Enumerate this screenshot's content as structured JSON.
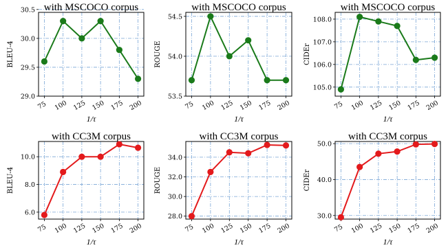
{
  "chart_data": [
    {
      "type": "line",
      "title": "with MSCOCO corpus",
      "xlabel": "1/τ",
      "ylabel": "BLEU-4",
      "x": [
        75,
        100,
        125,
        150,
        175,
        200
      ],
      "xticks": [
        "75",
        "100",
        "125",
        "150",
        "175",
        "200"
      ],
      "ylim": [
        29.0,
        30.45
      ],
      "yticks": [
        "29.0",
        "29.5",
        "30.0",
        "30.5"
      ],
      "ytick_values": [
        29.0,
        29.5,
        30.0,
        30.5
      ],
      "series": [
        {
          "values": [
            29.6,
            30.3,
            30.0,
            30.3,
            29.8,
            29.3
          ],
          "color": "#1a7a1a"
        }
      ],
      "grid": true
    },
    {
      "type": "line",
      "title": "with MSCOCO corpus",
      "xlabel": "1/τ",
      "ylabel": "ROUGE",
      "x": [
        75,
        100,
        125,
        150,
        175,
        200
      ],
      "xticks": [
        "75",
        "100",
        "125",
        "150",
        "175",
        "200"
      ],
      "ylim": [
        53.5,
        54.55
      ],
      "yticks": [
        "53.5",
        "54.0",
        "54.5"
      ],
      "ytick_values": [
        53.5,
        54.0,
        54.5
      ],
      "series": [
        {
          "values": [
            53.7,
            54.5,
            54.0,
            54.2,
            53.7,
            53.7
          ],
          "color": "#1a7a1a"
        }
      ],
      "grid": true
    },
    {
      "type": "line",
      "title": "with MSCOCO corpus",
      "xlabel": "1/τ",
      "ylabel": "CIDEr",
      "x": [
        75,
        100,
        125,
        150,
        175,
        200
      ],
      "xticks": [
        "75",
        "100",
        "125",
        "150",
        "175",
        "200"
      ],
      "ylim": [
        104.6,
        108.3
      ],
      "yticks": [
        "105.0",
        "106.0",
        "107.0",
        "108.0"
      ],
      "ytick_values": [
        105.0,
        106.0,
        107.0,
        108.0
      ],
      "series": [
        {
          "values": [
            104.9,
            108.1,
            107.9,
            107.7,
            106.2,
            106.3
          ],
          "color": "#1a7a1a"
        }
      ],
      "grid": true
    },
    {
      "type": "line",
      "title": "with CC3M corpus",
      "xlabel": "1/τ",
      "ylabel": "BLEU-4",
      "x": [
        75,
        100,
        125,
        150,
        175,
        200
      ],
      "xticks": [
        "75",
        "100",
        "125",
        "150",
        "175",
        "200"
      ],
      "ylim": [
        5.5,
        11.1
      ],
      "yticks": [
        "6.0",
        "8.0",
        "10.0"
      ],
      "ytick_values": [
        6.0,
        8.0,
        10.0
      ],
      "series": [
        {
          "values": [
            5.8,
            8.9,
            10.0,
            10.0,
            10.9,
            10.65
          ],
          "color": "#e31a1c"
        }
      ],
      "grid": true
    },
    {
      "type": "line",
      "title": "with CC3M corpus",
      "xlabel": "1/τ",
      "ylabel": "ROUGE",
      "x": [
        75,
        100,
        125,
        150,
        175,
        200
      ],
      "xticks": [
        "75",
        "100",
        "125",
        "150",
        "175",
        "200"
      ],
      "ylim": [
        27.7,
        35.6
      ],
      "yticks": [
        "28.0",
        "30.0",
        "32.0",
        "34.0"
      ],
      "ytick_values": [
        28.0,
        30.0,
        32.0,
        34.0
      ],
      "series": [
        {
          "values": [
            28.0,
            32.5,
            34.5,
            34.4,
            35.25,
            35.2
          ],
          "color": "#e31a1c"
        }
      ],
      "grid": true
    },
    {
      "type": "line",
      "title": "with CC3M corpus",
      "xlabel": "1/τ",
      "ylabel": "CIDEr",
      "x": [
        75,
        100,
        125,
        150,
        175,
        200
      ],
      "xticks": [
        "75",
        "100",
        "125",
        "150",
        "175",
        "200"
      ],
      "ylim": [
        29.0,
        50.6
      ],
      "yticks": [
        "30.0",
        "40.0",
        "50.0"
      ],
      "ytick_values": [
        30.0,
        40.0,
        50.0
      ],
      "series": [
        {
          "values": [
            29.5,
            43.5,
            47.2,
            47.8,
            49.8,
            49.9
          ],
          "color": "#e31a1c"
        }
      ],
      "grid": true
    }
  ]
}
